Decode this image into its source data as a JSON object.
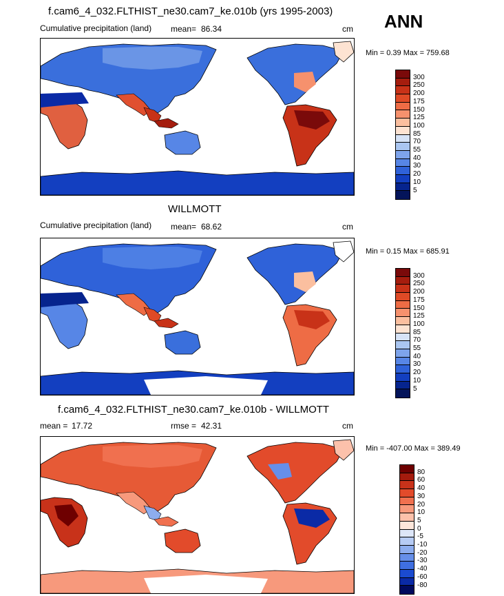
{
  "season": "ANN",
  "panels": [
    {
      "title": "f.cam6_4_032.FLTHIST_ne30.cam7_ke.010b (yrs 1995-2003)",
      "left_label": "Cumulative precipitation (land)",
      "stat_label": "mean=",
      "stat_value": "86.34",
      "unit": "cm",
      "minmax": "Min =   0.39 Max = 759.68",
      "levels": [
        "300",
        "250",
        "200",
        "175",
        "150",
        "125",
        "100",
        "85",
        "70",
        "55",
        "40",
        "30",
        "20",
        "10",
        "5"
      ],
      "colors": [
        "#7a0a0a",
        "#a51d0e",
        "#c83218",
        "#df4a26",
        "#ee6c45",
        "#f6916d",
        "#fbbf9f",
        "#fde3d2",
        "#d6e3f7",
        "#aac6f1",
        "#7ea4eb",
        "#5786e6",
        "#2f62d9",
        "#133fc0",
        "#06248e",
        "#04145a"
      ]
    },
    {
      "title": "WILLMOTT",
      "left_label": "Cumulative precipitation (land)",
      "stat_label": "mean=",
      "stat_value": "68.62",
      "unit": "cm",
      "minmax": "Min =   0.15 Max = 685.91",
      "levels": [
        "300",
        "250",
        "200",
        "175",
        "150",
        "125",
        "100",
        "85",
        "70",
        "55",
        "40",
        "30",
        "20",
        "10",
        "5"
      ],
      "colors": [
        "#7a0a0a",
        "#a51d0e",
        "#c83218",
        "#df4a26",
        "#ee6c45",
        "#f6916d",
        "#fbbf9f",
        "#fde3d2",
        "#d6e3f7",
        "#aac6f1",
        "#7ea4eb",
        "#5786e6",
        "#2f62d9",
        "#133fc0",
        "#06248e",
        "#04145a"
      ]
    },
    {
      "title": "f.cam6_4_032.FLTHIST_ne30.cam7_ke.010b - WILLMOTT",
      "left_label": "mean =",
      "left_value": "17.72",
      "stat_label": "rmse =",
      "stat_value": "42.31",
      "unit": "cm",
      "minmax": "Min = -407.00 Max = 389.49",
      "levels": [
        "80",
        "60",
        "40",
        "30",
        "20",
        "10",
        "5",
        "0",
        "-5",
        "-10",
        "-20",
        "-30",
        "-40",
        "-60",
        "-80"
      ],
      "colors": [
        "#6e0000",
        "#a41b0d",
        "#c8321a",
        "#e24b2b",
        "#f0704f",
        "#f7997c",
        "#fcc1ab",
        "#fde6da",
        "#dde6f8",
        "#b6cbf4",
        "#8dadee",
        "#668fe9",
        "#3f6fe0",
        "#1b4bd0",
        "#0a2aa6",
        "#000a5e"
      ]
    }
  ]
}
